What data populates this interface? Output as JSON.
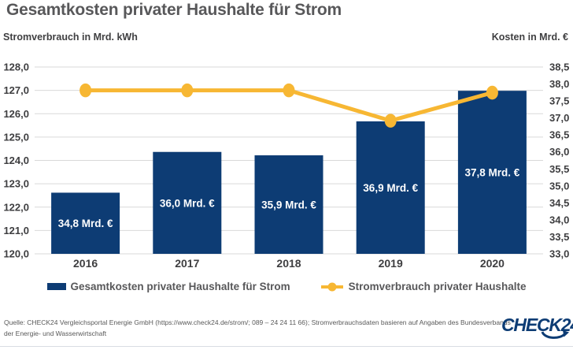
{
  "title": "Gesamtkosten privater Haushalte für Strom",
  "axes": {
    "left_label": "Stromverbrauch in Mrd. kWh",
    "right_label": "Kosten in Mrd. €"
  },
  "chart_data": {
    "type": "bar+line",
    "title": "Gesamtkosten privater Haushalte für Strom",
    "categories": [
      "2016",
      "2017",
      "2018",
      "2019",
      "2020"
    ],
    "series": [
      {
        "name": "Gesamtkosten privater Haushalte für Strom",
        "type": "bar",
        "axis": "right",
        "values": [
          34.8,
          36.0,
          35.9,
          36.9,
          37.8
        ],
        "data_labels": [
          "34,8 Mrd. €",
          "36,0 Mrd. €",
          "35,9 Mrd. €",
          "36,9 Mrd. €",
          "37,8 Mrd. €"
        ]
      },
      {
        "name": "Stromverbrauch privater Haushalte",
        "type": "line",
        "axis": "left",
        "values": [
          127.0,
          127.0,
          127.0,
          125.7,
          126.9
        ]
      }
    ],
    "left_axis": {
      "label": "Stromverbrauch in Mrd. kWh",
      "min": 120.0,
      "max": 128.0,
      "step": 1.0,
      "tick_labels": [
        "128,0",
        "127,0",
        "126,0",
        "125,0",
        "124,0",
        "123,0",
        "122,0",
        "121,0",
        "120,0"
      ]
    },
    "right_axis": {
      "label": "Kosten in Mrd. €",
      "min": 33.0,
      "max": 38.5,
      "step": 0.5,
      "tick_labels": [
        "38,5",
        "38,0",
        "37,5",
        "37,0",
        "36,5",
        "36,0",
        "35,5",
        "35,0",
        "34,5",
        "34,0",
        "33,5",
        "33,0"
      ]
    },
    "grid": true,
    "legend_position": "bottom"
  },
  "legend": {
    "items": [
      {
        "label": "Gesamtkosten privater Haushalte für Strom",
        "marker": "rect"
      },
      {
        "label": "Stromverbrauch privater Haushalte",
        "marker": "line-dot"
      }
    ]
  },
  "footer": {
    "source": "Quelle: CHECK24 Vergleichsportal Energie GmbH (https://www.check24.de/strom/; 089 – 24 24 11 66); Stromverbrauchsdaten basieren auf Angaben des Bundesverbands der Energie- und Wasserwirtschaft",
    "logo_text": "CHECK24"
  },
  "colors": {
    "bar": "#0d3c74",
    "line": "#f7b733",
    "grid": "#d9d9d9",
    "title": "#58585a",
    "tick": "#3e3e40",
    "bar_label": "#ffffff",
    "footer": "#595959",
    "logo": "#0d3c74"
  }
}
